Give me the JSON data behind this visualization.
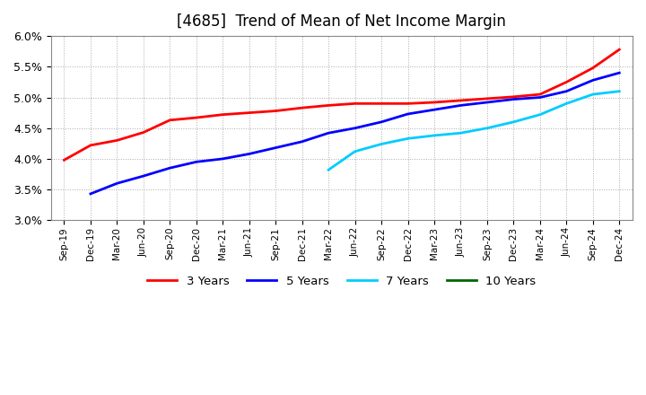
{
  "title": "[4685]  Trend of Mean of Net Income Margin",
  "x_labels": [
    "Sep-19",
    "Dec-19",
    "Mar-20",
    "Jun-20",
    "Sep-20",
    "Dec-20",
    "Mar-21",
    "Jun-21",
    "Sep-21",
    "Dec-21",
    "Mar-22",
    "Jun-22",
    "Sep-22",
    "Dec-22",
    "Mar-23",
    "Jun-23",
    "Sep-23",
    "Dec-23",
    "Mar-24",
    "Jun-24",
    "Sep-24",
    "Dec-24"
  ],
  "series_3y": {
    "label": "3 Years",
    "color": "#ff0000",
    "data_x": [
      0,
      1,
      2,
      3,
      4,
      5,
      6,
      7,
      8,
      9,
      10,
      11,
      12,
      13,
      14,
      15,
      16,
      17,
      18,
      19,
      20,
      21
    ],
    "data_y": [
      3.98,
      4.22,
      4.3,
      4.43,
      4.63,
      4.67,
      4.72,
      4.75,
      4.78,
      4.83,
      4.87,
      4.9,
      4.9,
      4.9,
      4.92,
      4.95,
      4.98,
      5.01,
      5.05,
      5.25,
      5.48,
      5.78
    ]
  },
  "series_5y": {
    "label": "5 Years",
    "color": "#0000ff",
    "data_x": [
      1,
      2,
      3,
      4,
      5,
      6,
      7,
      8,
      9,
      10,
      11,
      12,
      13,
      14,
      15,
      16,
      17,
      18,
      19,
      20,
      21
    ],
    "data_y": [
      3.43,
      3.6,
      3.72,
      3.85,
      3.95,
      4.0,
      4.08,
      4.18,
      4.28,
      4.42,
      4.5,
      4.6,
      4.73,
      4.8,
      4.87,
      4.92,
      4.97,
      5.0,
      5.1,
      5.28,
      5.4
    ]
  },
  "series_7y": {
    "label": "7 Years",
    "color": "#00ccff",
    "data_x": [
      10,
      11,
      12,
      13,
      14,
      15,
      16,
      17,
      18,
      19,
      20,
      21
    ],
    "data_y": [
      3.82,
      4.12,
      4.24,
      4.33,
      4.38,
      4.42,
      4.5,
      4.6,
      4.72,
      4.9,
      5.05,
      5.1
    ]
  },
  "series_10y": {
    "label": "10 Years",
    "color": "#006600",
    "data_x": [],
    "data_y": []
  },
  "ylim": [
    3.0,
    6.0
  ],
  "yticks": [
    3.0,
    3.5,
    4.0,
    4.5,
    5.0,
    5.5,
    6.0
  ],
  "background_color": "#ffffff",
  "plot_bg_color": "#ffffff",
  "grid_color": "#aaaaaa",
  "title_fontsize": 12,
  "legend_fontsize": 9.5
}
